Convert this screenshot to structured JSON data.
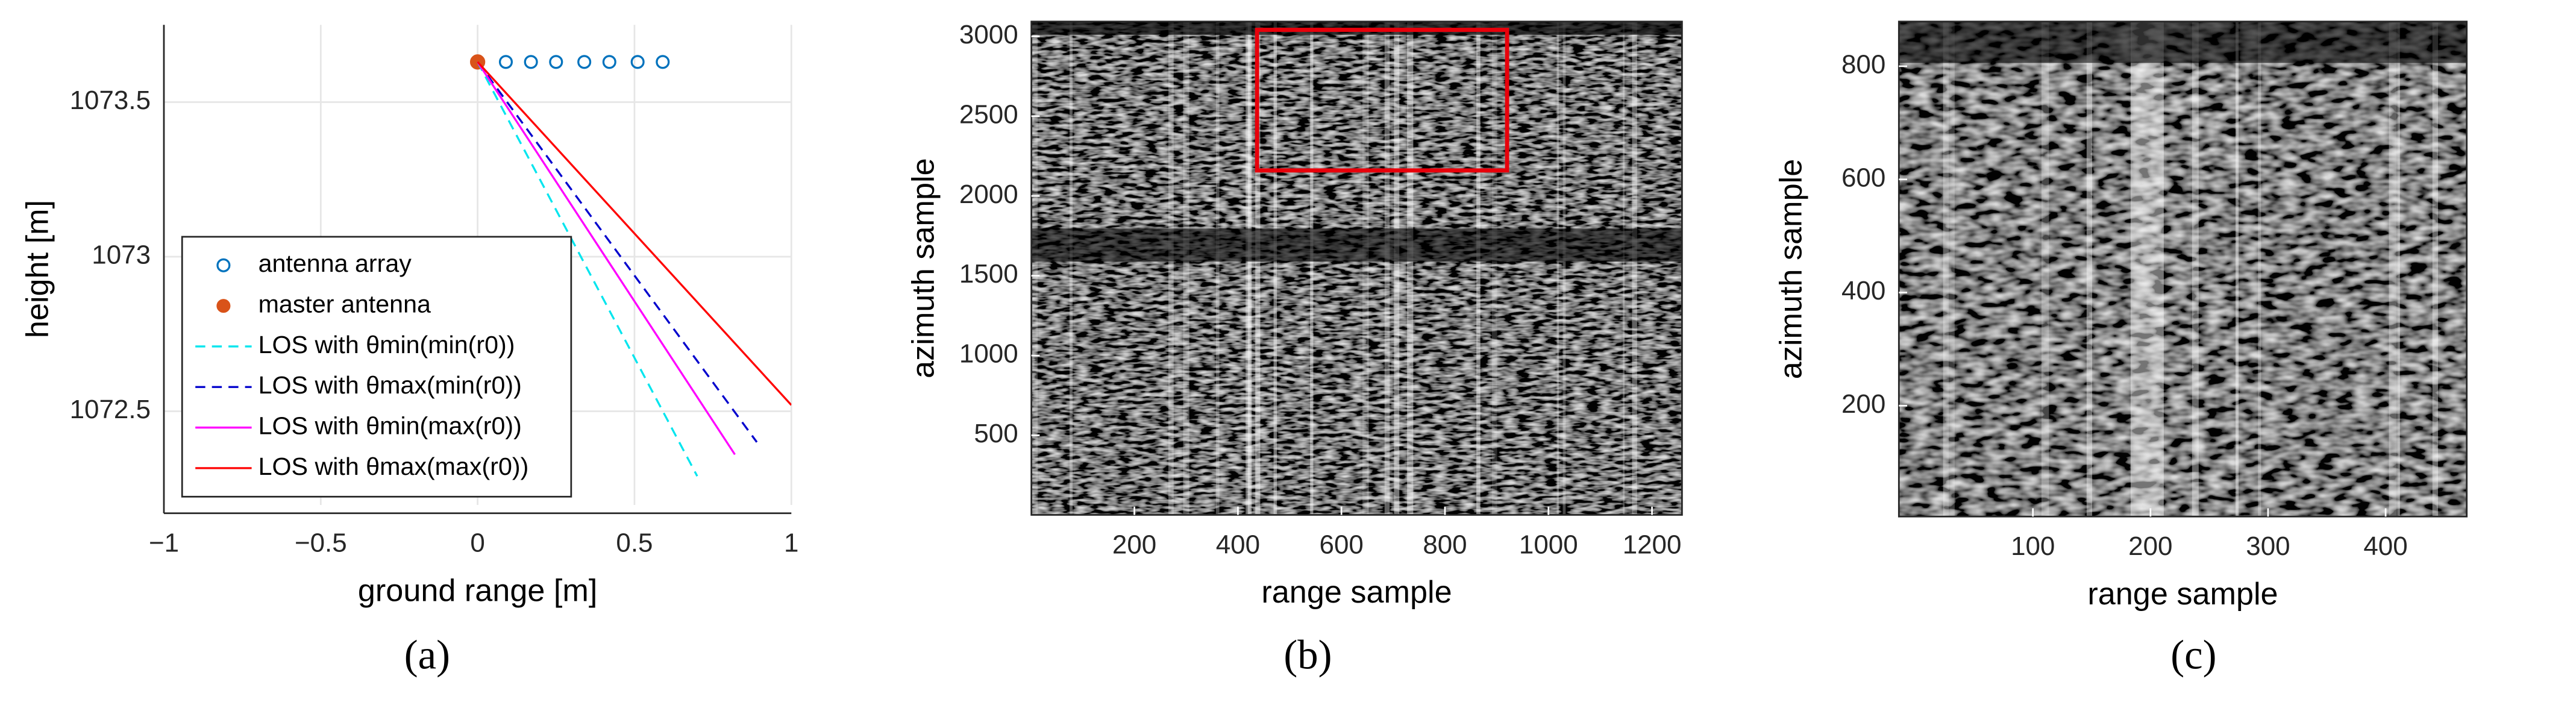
{
  "chart_data": [
    {
      "type": "line",
      "panel_label": "(a)",
      "xlabel": "ground range [m]",
      "ylabel": "height [m]",
      "xlim": [
        -1,
        1
      ],
      "ylim": [
        1072.17,
        1073.75
      ],
      "xticks": [
        {
          "value": -1,
          "label": "−1"
        },
        {
          "value": -0.5,
          "label": "−0.5"
        },
        0,
        0.5,
        1
      ],
      "yticks": [
        1072.5,
        1073,
        1073.5
      ],
      "grid": true,
      "legend": "lower left",
      "series": [
        {
          "name": "antenna array",
          "color": "#0072bd",
          "marker": "open-circle",
          "x": [
            0.09,
            0.17,
            0.25,
            0.34,
            0.42,
            0.51,
            0.59
          ],
          "values": [
            1073.63,
            1073.63,
            1073.63,
            1073.63,
            1073.63,
            1073.63,
            1073.63
          ]
        },
        {
          "name": "master antenna",
          "color": "#d95319",
          "marker": "filled-circle",
          "x": [
            0
          ],
          "values": [
            1073.63
          ]
        },
        {
          "name": "LOS with θmin(min(r0))",
          "color": "#00e5ee",
          "linestyle": "dashed",
          "x": [
            0,
            0.7
          ],
          "values": [
            1073.63,
            1072.29
          ]
        },
        {
          "name": "LOS with θmax(min(r0))",
          "color": "#0000cd",
          "linestyle": "dashed",
          "x": [
            0,
            0.89
          ],
          "values": [
            1073.63,
            1072.4
          ]
        },
        {
          "name": "LOS with θmin(max(r0))",
          "color": "#ff00ff",
          "linestyle": "solid",
          "x": [
            0,
            0.82
          ],
          "values": [
            1073.63,
            1072.36
          ]
        },
        {
          "name": "LOS with θmax(max(r0))",
          "color": "#ff0000",
          "linestyle": "solid",
          "x": [
            0,
            1
          ],
          "values": [
            1073.63,
            1072.52
          ]
        }
      ]
    },
    {
      "type": "image",
      "panel_label": "(b)",
      "xlabel": "range sample",
      "ylabel": "azimuth sample",
      "xlim": [
        1,
        1258
      ],
      "ylim": [
        1,
        3093
      ],
      "xticks": [
        200,
        400,
        600,
        800,
        1000,
        1200
      ],
      "yticks": [
        500,
        1000,
        1500,
        2000,
        2500,
        3000
      ],
      "highlight": {
        "x": [
          437,
          920
        ],
        "y": [
          2160,
          3041
        ],
        "color": "#e8000b"
      }
    },
    {
      "type": "image",
      "panel_label": "(c)",
      "xlabel": "range sample",
      "ylabel": "azimuth sample",
      "xlim": [
        -14,
        469
      ],
      "ylim": [
        4,
        879
      ],
      "xticks": [
        100,
        200,
        300,
        400
      ],
      "yticks": [
        200,
        400,
        600,
        800
      ]
    }
  ]
}
